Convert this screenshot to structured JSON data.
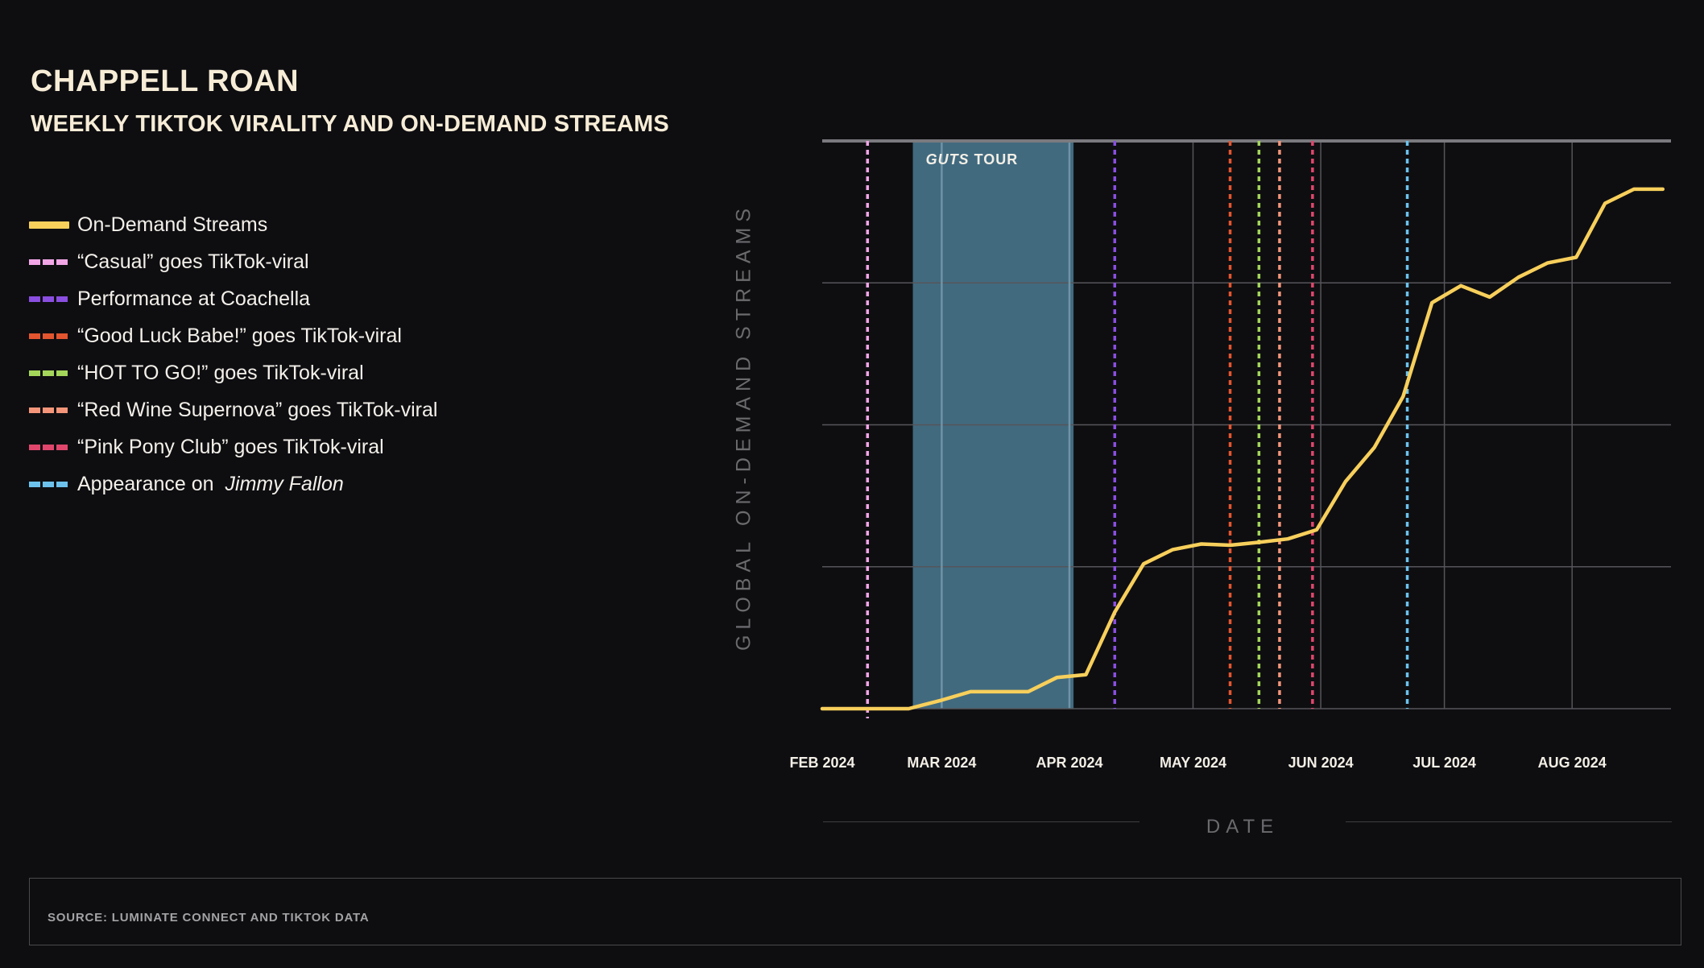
{
  "header": {
    "title": "CHAPPELL ROAN",
    "subtitle": "WEEKLY TIKTOK VIRALITY AND ON-DEMAND STREAMS"
  },
  "legend": [
    {
      "label": "On-Demand Streams",
      "color": "#f7cf5b",
      "style": "solid"
    },
    {
      "label": "“Casual” goes TikTok-viral",
      "color": "#f2a6e6",
      "style": "dotted"
    },
    {
      "label": "Performance at Coachella",
      "color": "#8a4ee0",
      "style": "dotted"
    },
    {
      "label": "“Good Luck Babe!”  goes TikTok-viral",
      "color": "#e3552e",
      "style": "dotted"
    },
    {
      "label": "“HOT TO GO!” goes TikTok-viral",
      "color": "#a4d65a",
      "style": "dotted"
    },
    {
      "label": "“Red Wine Supernova” goes TikTok-viral",
      "color": "#f4957a",
      "style": "dotted"
    },
    {
      "label": "“Pink Pony Club” goes TikTok-viral",
      "color": "#e0466c",
      "style": "dotted"
    },
    {
      "label": "Appearance on ",
      "label_italic": "Jimmy Fallon",
      "color": "#6cc2ec",
      "style": "dotted"
    }
  ],
  "source": "SOURCE: LUMINATE CONNECT AND TIKTOK DATA",
  "chart_data": {
    "type": "line",
    "title": "WEEKLY TIKTOK VIRALITY AND ON-DEMAND STREAMS",
    "xlabel": "DATE",
    "ylabel": "GLOBAL ON-DEMAND STREAMS",
    "x_ticks": [
      "FEB 2024",
      "MAR 2024",
      "APR 2024",
      "MAY 2024",
      "JUN 2024",
      "JUL 2024",
      "AUG 2024"
    ],
    "y_ticks_shown": false,
    "grid": true,
    "ylim": [
      0,
      100
    ],
    "x_range": [
      "2024-02-01",
      "2024-08-25"
    ],
    "shaded_region": {
      "label_italic": "GUTS",
      "label": " TOUR",
      "start": "2024-02-23",
      "end": "2024-04-02",
      "color": "#416a7f"
    },
    "series": [
      {
        "name": "On-Demand Streams",
        "color": "#f7cf5b",
        "points": [
          [
            "2024-02-01",
            0
          ],
          [
            "2024-02-08",
            0
          ],
          [
            "2024-02-15",
            0
          ],
          [
            "2024-02-22",
            0
          ],
          [
            "2024-03-01",
            1.5
          ],
          [
            "2024-03-08",
            3
          ],
          [
            "2024-03-15",
            3
          ],
          [
            "2024-03-22",
            3
          ],
          [
            "2024-03-29",
            5.5
          ],
          [
            "2024-04-05",
            6
          ],
          [
            "2024-04-12",
            17
          ],
          [
            "2024-04-19",
            25.5
          ],
          [
            "2024-04-26",
            28
          ],
          [
            "2024-05-03",
            29
          ],
          [
            "2024-05-10",
            28.8
          ],
          [
            "2024-05-17",
            29.3
          ],
          [
            "2024-05-24",
            29.9
          ],
          [
            "2024-05-31",
            31.5
          ],
          [
            "2024-06-07",
            40
          ],
          [
            "2024-06-14",
            46
          ],
          [
            "2024-06-21",
            55
          ],
          [
            "2024-06-28",
            71.5
          ],
          [
            "2024-07-05",
            74.5
          ],
          [
            "2024-07-12",
            72.5
          ],
          [
            "2024-07-19",
            76
          ],
          [
            "2024-07-26",
            78.5
          ],
          [
            "2024-08-02",
            79.5
          ],
          [
            "2024-08-09",
            89
          ],
          [
            "2024-08-16",
            91.5
          ],
          [
            "2024-08-23",
            91.5
          ]
        ]
      }
    ],
    "events": [
      {
        "label": "“Casual” goes TikTok-viral",
        "date": "2024-02-12",
        "color": "#f2a6e6"
      },
      {
        "label": "Performance at Coachella",
        "date": "2024-04-12",
        "color": "#8a4ee0"
      },
      {
        "label": "“Good Luck Babe!”  goes TikTok-viral",
        "date": "2024-05-10",
        "color": "#e3552e"
      },
      {
        "label": "“HOT TO GO!” goes TikTok-viral",
        "date": "2024-05-17",
        "color": "#a4d65a"
      },
      {
        "label": "“Red Wine Supernova” goes TikTok-viral",
        "date": "2024-05-22",
        "color": "#f4957a"
      },
      {
        "label": "“Pink Pony Club” goes TikTok-viral",
        "date": "2024-05-30",
        "color": "#e0466c"
      },
      {
        "label": "Appearance on Jimmy Fallon",
        "date": "2024-06-22",
        "color": "#6cc2ec"
      }
    ]
  }
}
